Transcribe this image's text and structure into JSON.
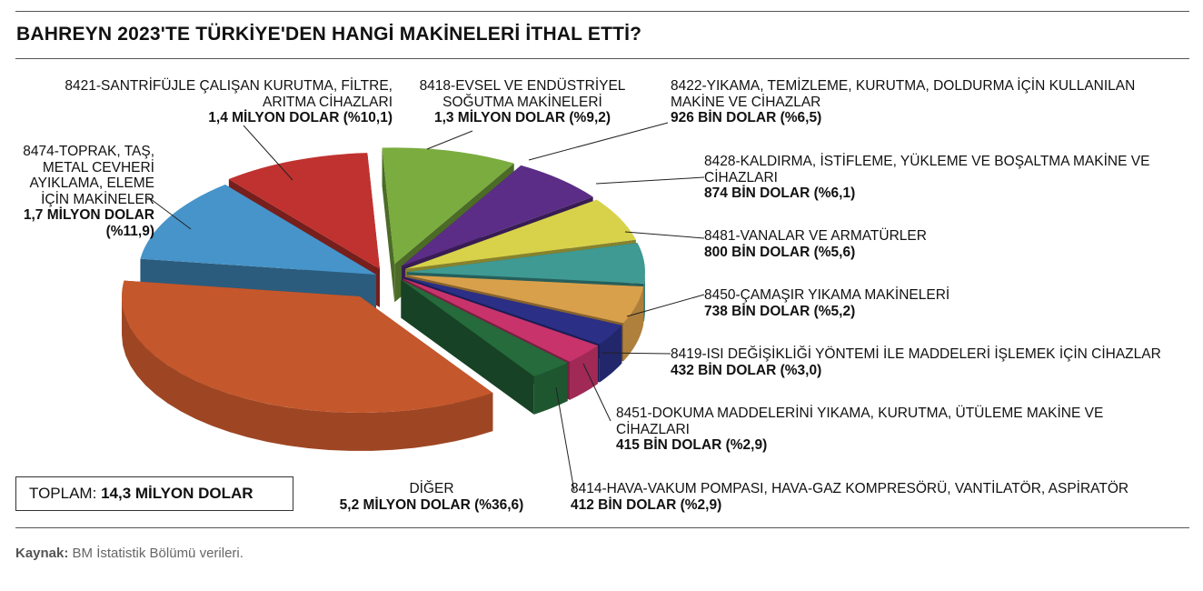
{
  "title": "BAHREYN 2023'TE TÜRKİYE'DEN HANGİ MAKİNELERİ İTHAL ETTİ?",
  "total": {
    "label": "TOPLAM:",
    "value": "14,3 MİLYON DOLAR"
  },
  "source": {
    "label": "Kaynak:",
    "text": "BM İstatistik Bölümü verileri."
  },
  "chart_data": {
    "type": "pie",
    "style": "3d-exploded",
    "slices": [
      {
        "name": "8418-EVSEL VE ENDÜSTRİYEL SOĞUTMA MAKİNELERİ",
        "value_text": "1,3 MİLYON DOLAR (%9,2)",
        "value": 9.2,
        "color": "#7aac3f"
      },
      {
        "name": "8422-YIKAMA, TEMİZLEME, KURUTMA, DOLDURMA İÇİN KULLANILAN MAKİNE VE CİHAZLAR",
        "value_text": "926 BİN DOLAR (%6,5)",
        "value": 6.5,
        "color": "#5b2d86"
      },
      {
        "name": "8428-KALDIRMA, İSTİFLEME, YÜKLEME VE BOŞALTMA MAKİNE VE CİHAZLARI",
        "value_text": "874 BİN DOLAR (%6,1)",
        "value": 6.1,
        "color": "#d8d24a"
      },
      {
        "name": "8481-VANALAR VE ARMATÜRLER",
        "value_text": "800 BİN DOLAR (%5,6)",
        "value": 5.6,
        "color": "#3e9a92"
      },
      {
        "name": "8450-ÇAMAŞIR YIKAMA MAKİNELERİ",
        "value_text": "738 BİN DOLAR (%5,2)",
        "value": 5.2,
        "color": "#d9a04b"
      },
      {
        "name": "8419-ISI DEĞİŞİKLİĞİ YÖNTEMİ İLE MADDELERİ İŞLEMEK İÇİN CİHAZLAR",
        "value_text": "432 BİN DOLAR (%3,0)",
        "value": 3.0,
        "color": "#2b2f86"
      },
      {
        "name": "8451-DOKUMA MADDELERİNİ YIKAMA, KURUTMA, ÜTÜLEME MAKİNE VE CİHAZLARI",
        "value_text": "415 BİN DOLAR (%2,9)",
        "value": 2.9,
        "color": "#c8336c"
      },
      {
        "name": "8414-HAVA-VAKUM POMPASI, HAVA-GAZ KOMPRESÖRÜ, VANTİLATÖR, ASPİRATÖR",
        "value_text": "412 BİN DOLAR (%2,9)",
        "value": 2.9,
        "color": "#256b3c"
      },
      {
        "name": "DİĞER",
        "value_text": "5,2 MİLYON DOLAR (%36,6)",
        "value": 36.6,
        "color": "#c5572c"
      },
      {
        "name": "8474-TOPRAK, TAŞ, METAL CEVHERİ AYIKLAMA, ELEME İÇİN MAKİNELER",
        "value_text": "1,7 MİLYON DOLAR (%11,9)",
        "value": 11.9,
        "color": "#4694c9"
      },
      {
        "name": "8421-SANTRİFÜJLE ÇALIŞAN KURUTMA, FİLTRE, ARITMA CİHAZLARI",
        "value_text": "1,4 MİLYON DOLAR (%10,1)",
        "value": 10.1,
        "color": "#c0322f"
      }
    ]
  }
}
